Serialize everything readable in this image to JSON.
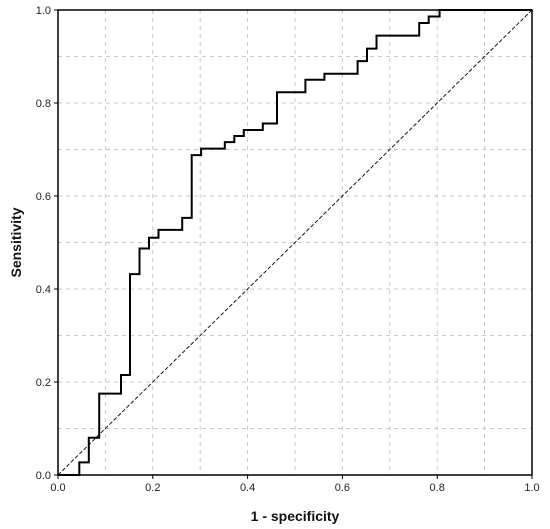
{
  "chart_data": {
    "type": "line",
    "title": "",
    "xlabel": "1 - specificity",
    "ylabel": "Sensitivity",
    "xlim": [
      0,
      1
    ],
    "ylim": [
      0,
      1
    ],
    "grid": true,
    "x_ticks": [
      "0.0",
      "0.2",
      "0.4",
      "0.6",
      "0.8",
      "1.0"
    ],
    "y_ticks": [
      "0.0",
      "0.2",
      "0.4",
      "0.6",
      "0.8",
      "1.0"
    ],
    "series": [
      {
        "style": "step",
        "color": "#000000",
        "points": [
          [
            0.0,
            0.0
          ],
          [
            0.045,
            0.0
          ],
          [
            0.045,
            0.027
          ],
          [
            0.065,
            0.027
          ],
          [
            0.065,
            0.08
          ],
          [
            0.087,
            0.08
          ],
          [
            0.087,
            0.175
          ],
          [
            0.133,
            0.175
          ],
          [
            0.133,
            0.215
          ],
          [
            0.152,
            0.215
          ],
          [
            0.152,
            0.432
          ],
          [
            0.172,
            0.432
          ],
          [
            0.172,
            0.487
          ],
          [
            0.192,
            0.487
          ],
          [
            0.192,
            0.51
          ],
          [
            0.212,
            0.51
          ],
          [
            0.212,
            0.527
          ],
          [
            0.262,
            0.527
          ],
          [
            0.262,
            0.553
          ],
          [
            0.282,
            0.553
          ],
          [
            0.282,
            0.688
          ],
          [
            0.302,
            0.688
          ],
          [
            0.302,
            0.702
          ],
          [
            0.352,
            0.702
          ],
          [
            0.352,
            0.716
          ],
          [
            0.372,
            0.716
          ],
          [
            0.372,
            0.729
          ],
          [
            0.392,
            0.729
          ],
          [
            0.392,
            0.742
          ],
          [
            0.432,
            0.742
          ],
          [
            0.432,
            0.756
          ],
          [
            0.462,
            0.756
          ],
          [
            0.462,
            0.823
          ],
          [
            0.522,
            0.823
          ],
          [
            0.522,
            0.85
          ],
          [
            0.562,
            0.85
          ],
          [
            0.562,
            0.863
          ],
          [
            0.632,
            0.863
          ],
          [
            0.632,
            0.89
          ],
          [
            0.652,
            0.89
          ],
          [
            0.652,
            0.917
          ],
          [
            0.672,
            0.917
          ],
          [
            0.672,
            0.945
          ],
          [
            0.762,
            0.945
          ],
          [
            0.762,
            0.972
          ],
          [
            0.782,
            0.972
          ],
          [
            0.782,
            0.986
          ],
          [
            0.805,
            0.986
          ],
          [
            0.805,
            1.0
          ],
          [
            1.0,
            1.0
          ]
        ]
      },
      {
        "style": "reference",
        "color": "#000000",
        "points": [
          [
            0,
            0
          ],
          [
            1,
            1
          ]
        ]
      }
    ]
  }
}
